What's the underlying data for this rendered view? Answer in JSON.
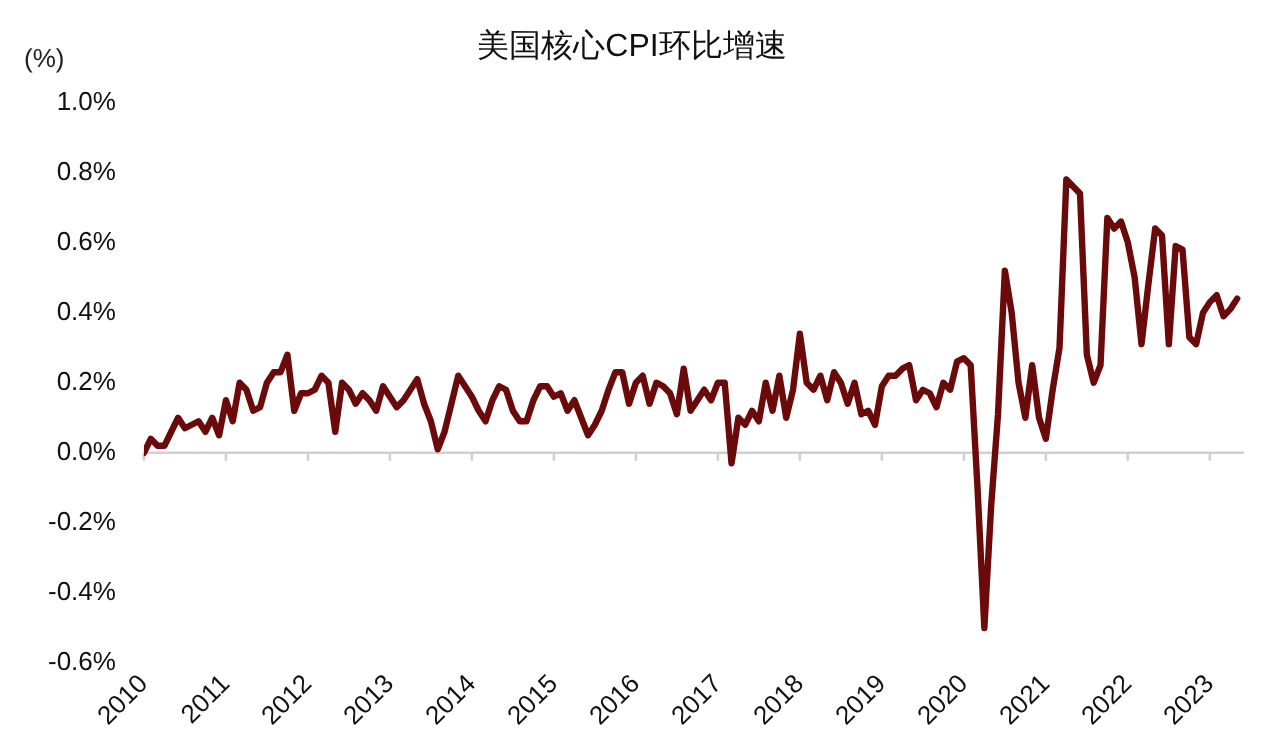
{
  "chart_data": {
    "type": "line",
    "title": "美国核心CPI环比增速",
    "ylabel": "(%)",
    "x": [
      "2010-01",
      "2010-02",
      "2010-03",
      "2010-04",
      "2010-05",
      "2010-06",
      "2010-07",
      "2010-08",
      "2010-09",
      "2010-10",
      "2010-11",
      "2010-12",
      "2011-01",
      "2011-02",
      "2011-03",
      "2011-04",
      "2011-05",
      "2011-06",
      "2011-07",
      "2011-08",
      "2011-09",
      "2011-10",
      "2011-11",
      "2011-12",
      "2012-01",
      "2012-02",
      "2012-03",
      "2012-04",
      "2012-05",
      "2012-06",
      "2012-07",
      "2012-08",
      "2012-09",
      "2012-10",
      "2012-11",
      "2012-12",
      "2013-01",
      "2013-02",
      "2013-03",
      "2013-04",
      "2013-05",
      "2013-06",
      "2013-07",
      "2013-08",
      "2013-09",
      "2013-10",
      "2013-11",
      "2013-12",
      "2014-01",
      "2014-02",
      "2014-03",
      "2014-04",
      "2014-05",
      "2014-06",
      "2014-07",
      "2014-08",
      "2014-09",
      "2014-10",
      "2014-11",
      "2014-12",
      "2015-01",
      "2015-02",
      "2015-03",
      "2015-04",
      "2015-05",
      "2015-06",
      "2015-07",
      "2015-08",
      "2015-09",
      "2015-10",
      "2015-11",
      "2015-12",
      "2016-01",
      "2016-02",
      "2016-03",
      "2016-04",
      "2016-05",
      "2016-06",
      "2016-07",
      "2016-08",
      "2016-09",
      "2016-10",
      "2016-11",
      "2016-12",
      "2017-01",
      "2017-02",
      "2017-03",
      "2017-04",
      "2017-05",
      "2017-06",
      "2017-07",
      "2017-08",
      "2017-09",
      "2017-10",
      "2017-11",
      "2017-12",
      "2018-01",
      "2018-02",
      "2018-03",
      "2018-04",
      "2018-05",
      "2018-06",
      "2018-07",
      "2018-08",
      "2018-09",
      "2018-10",
      "2018-11",
      "2018-12",
      "2019-01",
      "2019-02",
      "2019-03",
      "2019-04",
      "2019-05",
      "2019-06",
      "2019-07",
      "2019-08",
      "2019-09",
      "2019-10",
      "2019-11",
      "2019-12",
      "2020-01",
      "2020-02",
      "2020-03",
      "2020-04",
      "2020-05",
      "2020-06",
      "2020-07",
      "2020-08",
      "2020-09",
      "2020-10",
      "2020-11",
      "2020-12",
      "2021-01",
      "2021-02",
      "2021-03",
      "2021-04",
      "2021-05",
      "2021-06",
      "2021-07",
      "2021-08",
      "2021-09",
      "2021-10",
      "2021-11",
      "2021-12",
      "2022-01",
      "2022-02",
      "2022-03",
      "2022-04",
      "2022-05",
      "2022-06",
      "2022-07",
      "2022-08",
      "2022-09",
      "2022-10",
      "2022-11",
      "2022-12",
      "2023-01",
      "2023-02",
      "2023-03",
      "2023-04",
      "2023-05"
    ],
    "series": [
      {
        "color": "#6b0a0a",
        "values": [
          0.0,
          0.04,
          0.02,
          0.02,
          0.06,
          0.1,
          0.07,
          0.08,
          0.09,
          0.06,
          0.1,
          0.05,
          0.15,
          0.09,
          0.2,
          0.18,
          0.12,
          0.13,
          0.2,
          0.23,
          0.23,
          0.28,
          0.12,
          0.17,
          0.17,
          0.18,
          0.22,
          0.2,
          0.06,
          0.2,
          0.18,
          0.14,
          0.17,
          0.15,
          0.12,
          0.19,
          0.16,
          0.13,
          0.15,
          0.18,
          0.21,
          0.14,
          0.09,
          0.01,
          0.06,
          0.14,
          0.22,
          0.19,
          0.16,
          0.12,
          0.09,
          0.15,
          0.19,
          0.18,
          0.12,
          0.09,
          0.09,
          0.15,
          0.19,
          0.19,
          0.16,
          0.17,
          0.12,
          0.15,
          0.1,
          0.05,
          0.08,
          0.12,
          0.18,
          0.23,
          0.23,
          0.14,
          0.2,
          0.22,
          0.14,
          0.2,
          0.19,
          0.17,
          0.11,
          0.24,
          0.12,
          0.15,
          0.18,
          0.15,
          0.2,
          0.2,
          -0.03,
          0.1,
          0.08,
          0.12,
          0.09,
          0.2,
          0.12,
          0.22,
          0.1,
          0.18,
          0.34,
          0.2,
          0.18,
          0.22,
          0.15,
          0.23,
          0.2,
          0.14,
          0.2,
          0.11,
          0.12,
          0.08,
          0.19,
          0.22,
          0.22,
          0.24,
          0.25,
          0.15,
          0.18,
          0.17,
          0.13,
          0.2,
          0.18,
          0.26,
          0.27,
          0.25,
          -0.1,
          -0.5,
          -0.15,
          0.11,
          0.52,
          0.4,
          0.2,
          0.1,
          0.25,
          0.1,
          0.04,
          0.18,
          0.3,
          0.78,
          0.76,
          0.74,
          0.28,
          0.2,
          0.25,
          0.67,
          0.64,
          0.66,
          0.6,
          0.5,
          0.31,
          0.48,
          0.64,
          0.62,
          0.31,
          0.59,
          0.58,
          0.33,
          0.31,
          0.4,
          0.43,
          0.45,
          0.39,
          0.41,
          0.44
        ]
      }
    ],
    "xlim": [
      "2010-01",
      "2023-06"
    ],
    "xticks": [
      "2010",
      "2011",
      "2012",
      "2013",
      "2014",
      "2015",
      "2016",
      "2017",
      "2018",
      "2019",
      "2020",
      "2021",
      "2022",
      "2023"
    ],
    "ylim": [
      -0.6,
      1.0
    ],
    "yticks": [
      {
        "value": -0.6,
        "label": "-0.6%"
      },
      {
        "value": -0.4,
        "label": "-0.4%"
      },
      {
        "value": -0.2,
        "label": "-0.2%"
      },
      {
        "value": 0.0,
        "label": "0.0%"
      },
      {
        "value": 0.2,
        "label": "0.2%"
      },
      {
        "value": 0.4,
        "label": "0.4%"
      },
      {
        "value": 0.6,
        "label": "0.6%"
      },
      {
        "value": 0.8,
        "label": "0.8%"
      },
      {
        "value": 1.0,
        "label": "1.0%"
      }
    ],
    "ref_lines": [
      {
        "axis": "y",
        "value": 0,
        "color": "#d0d0d0"
      }
    ],
    "grid": false,
    "legend": false,
    "marker": "none",
    "line_style": "solid"
  }
}
